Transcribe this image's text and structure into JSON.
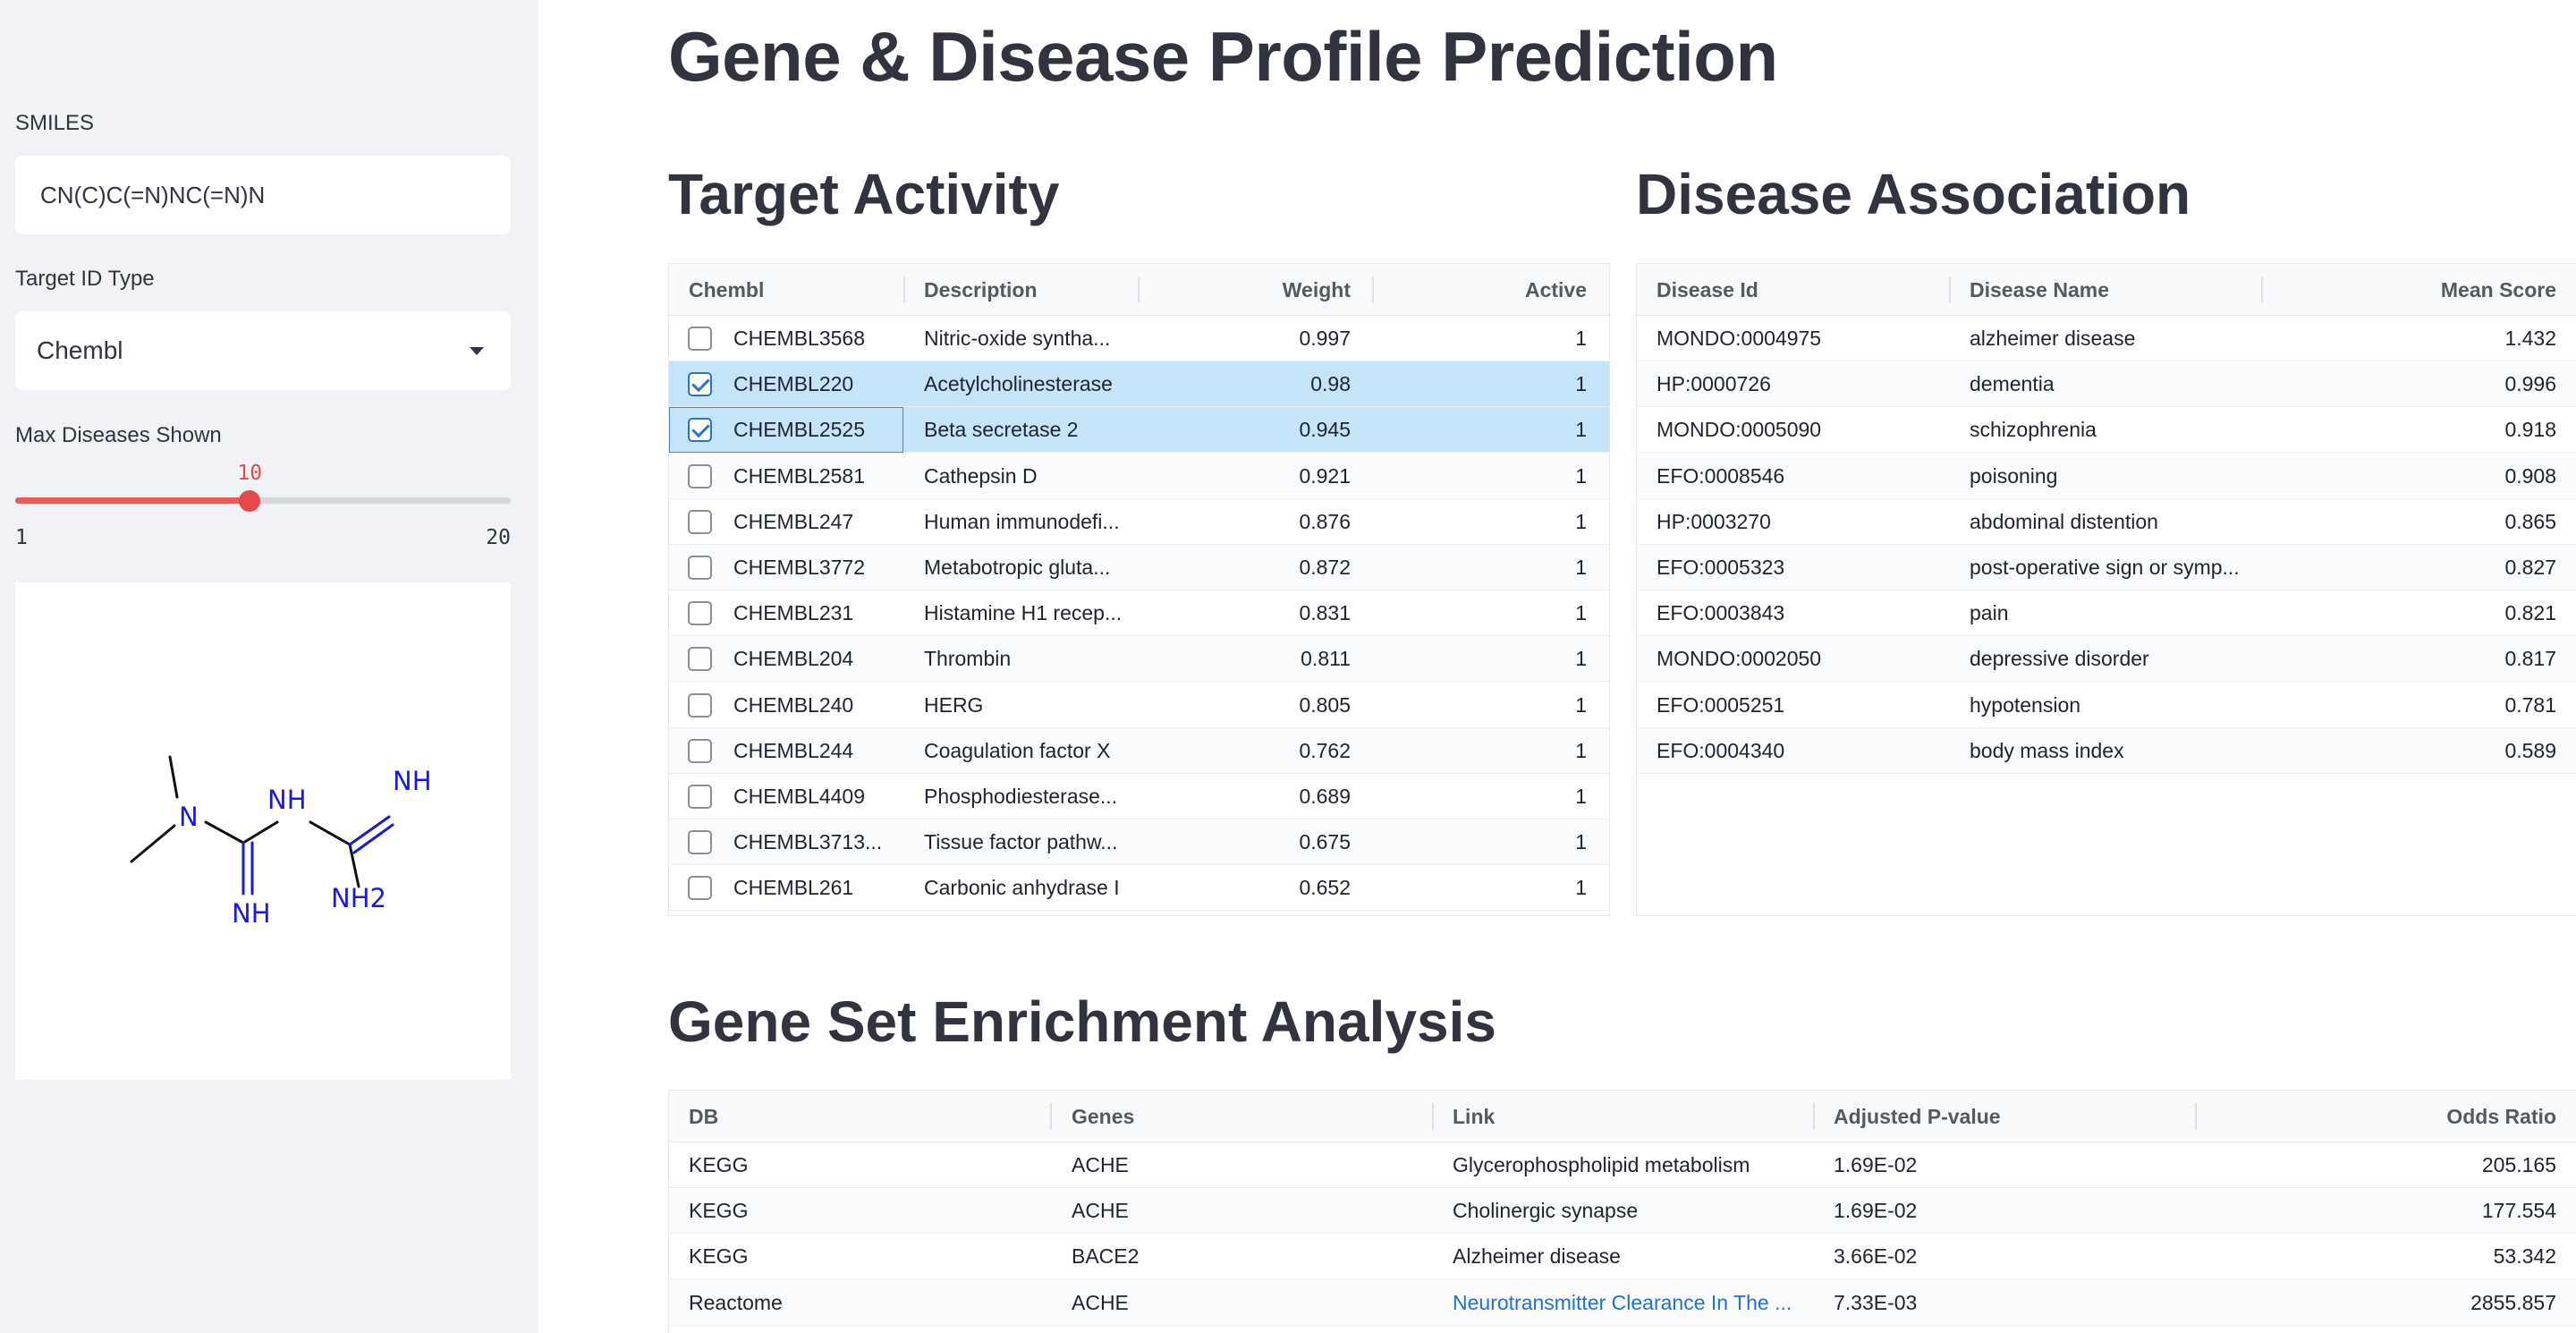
{
  "sidebar": {
    "smiles_label": "SMILES",
    "smiles_value": "CN(C)C(=N)NC(=N)N",
    "target_type_label": "Target ID Type",
    "target_type_value": "Chembl",
    "max_diseases_label": "Max Diseases Shown",
    "slider": {
      "value": "10",
      "min": "1",
      "max": "20",
      "fraction": 0.4737
    },
    "molecule_atoms": [
      "N",
      "NH",
      "NH",
      "NH",
      "NH2"
    ]
  },
  "main": {
    "title": "Gene & Disease Profile Prediction",
    "target_activity": {
      "title": "Target Activity",
      "columns": [
        "Chembl",
        "Description",
        "Weight",
        "Active"
      ],
      "rows": [
        {
          "id": "CHEMBL3568",
          "desc": "Nitric-oxide syntha...",
          "weight": "0.997",
          "active": "1",
          "checked": false
        },
        {
          "id": "CHEMBL220",
          "desc": "Acetylcholinesterase",
          "weight": "0.98",
          "active": "1",
          "checked": true
        },
        {
          "id": "CHEMBL2525",
          "desc": "Beta secretase 2",
          "weight": "0.945",
          "active": "1",
          "checked": true
        },
        {
          "id": "CHEMBL2581",
          "desc": "Cathepsin D",
          "weight": "0.921",
          "active": "1",
          "checked": false
        },
        {
          "id": "CHEMBL247",
          "desc": "Human immunodefi...",
          "weight": "0.876",
          "active": "1",
          "checked": false
        },
        {
          "id": "CHEMBL3772",
          "desc": "Metabotropic gluta...",
          "weight": "0.872",
          "active": "1",
          "checked": false
        },
        {
          "id": "CHEMBL231",
          "desc": "Histamine H1 recep...",
          "weight": "0.831",
          "active": "1",
          "checked": false
        },
        {
          "id": "CHEMBL204",
          "desc": "Thrombin",
          "weight": "0.811",
          "active": "1",
          "checked": false
        },
        {
          "id": "CHEMBL240",
          "desc": "HERG",
          "weight": "0.805",
          "active": "1",
          "checked": false
        },
        {
          "id": "CHEMBL244",
          "desc": "Coagulation factor X",
          "weight": "0.762",
          "active": "1",
          "checked": false
        },
        {
          "id": "CHEMBL4409",
          "desc": "Phosphodiesterase...",
          "weight": "0.689",
          "active": "1",
          "checked": false
        },
        {
          "id": "CHEMBL3713...",
          "desc": "Tissue factor pathw...",
          "weight": "0.675",
          "active": "1",
          "checked": false
        },
        {
          "id": "CHEMBL261",
          "desc": "Carbonic anhydrase I",
          "weight": "0.652",
          "active": "1",
          "checked": false
        }
      ]
    },
    "disease_association": {
      "title": "Disease Association",
      "columns": [
        "Disease Id",
        "Disease Name",
        "Mean Score"
      ],
      "rows": [
        {
          "id": "MONDO:0004975",
          "name": "alzheimer disease",
          "score": "1.432"
        },
        {
          "id": "HP:0000726",
          "name": "dementia",
          "score": "0.996"
        },
        {
          "id": "MONDO:0005090",
          "name": "schizophrenia",
          "score": "0.918"
        },
        {
          "id": "EFO:0008546",
          "name": "poisoning",
          "score": "0.908"
        },
        {
          "id": "HP:0003270",
          "name": "abdominal distention",
          "score": "0.865"
        },
        {
          "id": "EFO:0005323",
          "name": "post-operative sign or symp...",
          "score": "0.827"
        },
        {
          "id": "EFO:0003843",
          "name": "pain",
          "score": "0.821"
        },
        {
          "id": "MONDO:0002050",
          "name": "depressive disorder",
          "score": "0.817"
        },
        {
          "id": "EFO:0005251",
          "name": "hypotension",
          "score": "0.781"
        },
        {
          "id": "EFO:0004340",
          "name": "body mass index",
          "score": "0.589"
        }
      ]
    },
    "gsea": {
      "title": "Gene Set Enrichment Analysis",
      "columns": [
        "DB",
        "Genes",
        "Link",
        "Adjusted P-value",
        "Odds Ratio"
      ],
      "rows": [
        {
          "db": "KEGG",
          "genes": "ACHE",
          "link": "Glycerophospholipid metabolism",
          "pval": "1.69E-02",
          "odds": "205.165",
          "is_link": false
        },
        {
          "db": "KEGG",
          "genes": "ACHE",
          "link": "Cholinergic synapse",
          "pval": "1.69E-02",
          "odds": "177.554",
          "is_link": false
        },
        {
          "db": "KEGG",
          "genes": "BACE2",
          "link": "Alzheimer disease",
          "pval": "3.66E-02",
          "odds": "53.342",
          "is_link": false
        },
        {
          "db": "Reactome",
          "genes": "ACHE",
          "link": "Neurotransmitter Clearance In The ...",
          "pval": "7.33E-03",
          "odds": "2855.857",
          "is_link": true
        }
      ]
    }
  }
}
